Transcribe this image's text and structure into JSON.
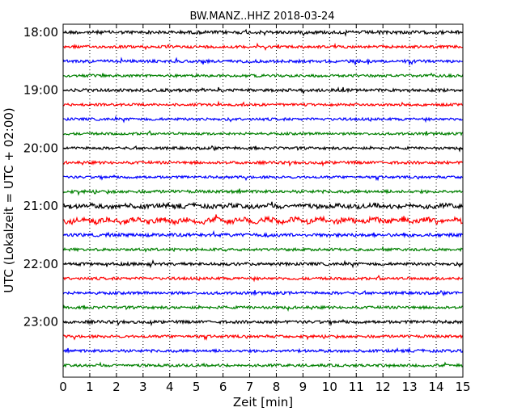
{
  "chart_data": {
    "type": "line",
    "title": "BW.MANZ..HHZ 2018-03-24",
    "xlabel": "Zeit  [min]",
    "ylabel": "UTC (Lokalzeit = UTC + 02:00)",
    "xlim": [
      0,
      15
    ],
    "x_ticks": [
      "0",
      "1",
      "2",
      "3",
      "4",
      "5",
      "6",
      "7",
      "8",
      "9",
      "10",
      "11",
      "12",
      "13",
      "14",
      "15"
    ],
    "y_tick_labels": [
      "18:00",
      "19:00",
      "20:00",
      "21:00",
      "22:00",
      "23:00"
    ],
    "y_tick_rows": [
      0,
      4,
      8,
      12,
      16,
      20
    ],
    "trace_count": 24,
    "trace_colors": [
      "#000000",
      "#ff0000",
      "#0000ff",
      "#008000"
    ],
    "grid": "vertical dotted at every minute",
    "legend": "none",
    "traces": [
      {
        "start": "18:00",
        "amplitude": 2.0
      },
      {
        "start": "18:15",
        "amplitude": 1.6
      },
      {
        "start": "18:30",
        "amplitude": 1.8
      },
      {
        "start": "18:45",
        "amplitude": 1.6
      },
      {
        "start": "19:00",
        "amplitude": 1.8
      },
      {
        "start": "19:15",
        "amplitude": 1.5
      },
      {
        "start": "19:30",
        "amplitude": 1.6
      },
      {
        "start": "19:45",
        "amplitude": 1.5
      },
      {
        "start": "20:00",
        "amplitude": 1.6
      },
      {
        "start": "20:15",
        "amplitude": 1.7
      },
      {
        "start": "20:30",
        "amplitude": 1.5
      },
      {
        "start": "20:45",
        "amplitude": 1.8
      },
      {
        "start": "21:00",
        "amplitude": 2.6
      },
      {
        "start": "21:15",
        "amplitude": 3.0
      },
      {
        "start": "21:30",
        "amplitude": 2.0
      },
      {
        "start": "21:45",
        "amplitude": 1.6
      },
      {
        "start": "22:00",
        "amplitude": 1.8
      },
      {
        "start": "22:15",
        "amplitude": 1.6
      },
      {
        "start": "22:30",
        "amplitude": 1.7
      },
      {
        "start": "22:45",
        "amplitude": 1.6
      },
      {
        "start": "23:00",
        "amplitude": 1.8
      },
      {
        "start": "23:15",
        "amplitude": 1.6
      },
      {
        "start": "23:30",
        "amplitude": 1.7
      },
      {
        "start": "23:45",
        "amplitude": 1.6
      }
    ]
  }
}
